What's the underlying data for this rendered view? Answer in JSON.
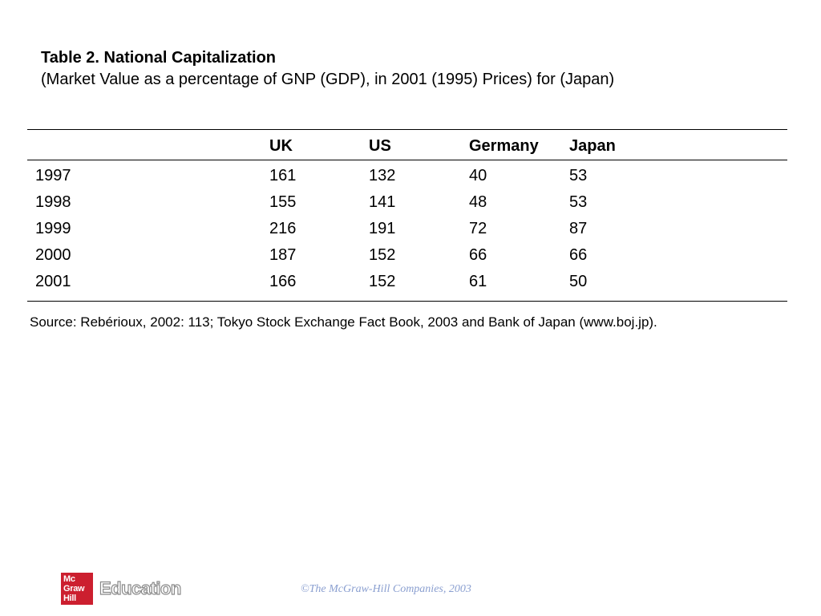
{
  "title": "Table 2. National Capitalization",
  "subtitle": "(Market Value as a percentage of GNP (GDP), in 2001 (1995) Prices) for (Japan)",
  "table": {
    "headers": [
      "",
      "UK",
      "US",
      "Germany",
      "Japan"
    ],
    "rows": [
      [
        "1997",
        "161",
        "132",
        "40",
        "53"
      ],
      [
        "1998",
        "155",
        "141",
        "48",
        "53"
      ],
      [
        "1999",
        "216",
        "191",
        "72",
        "87"
      ],
      [
        "2000",
        "187",
        "152",
        "66",
        "66"
      ],
      [
        "2001",
        "166",
        "152",
        "61",
        "50"
      ]
    ]
  },
  "source": "Source: Rebérioux, 2002: 113; Tokyo Stock Exchange Fact Book, 2003 and Bank of Japan (www.boj.jp).",
  "footer": {
    "logo_lines": [
      "Mc",
      "Graw",
      "Hill"
    ],
    "brand": "Education",
    "copyright": "©The McGraw-Hill Companies, 2003"
  }
}
